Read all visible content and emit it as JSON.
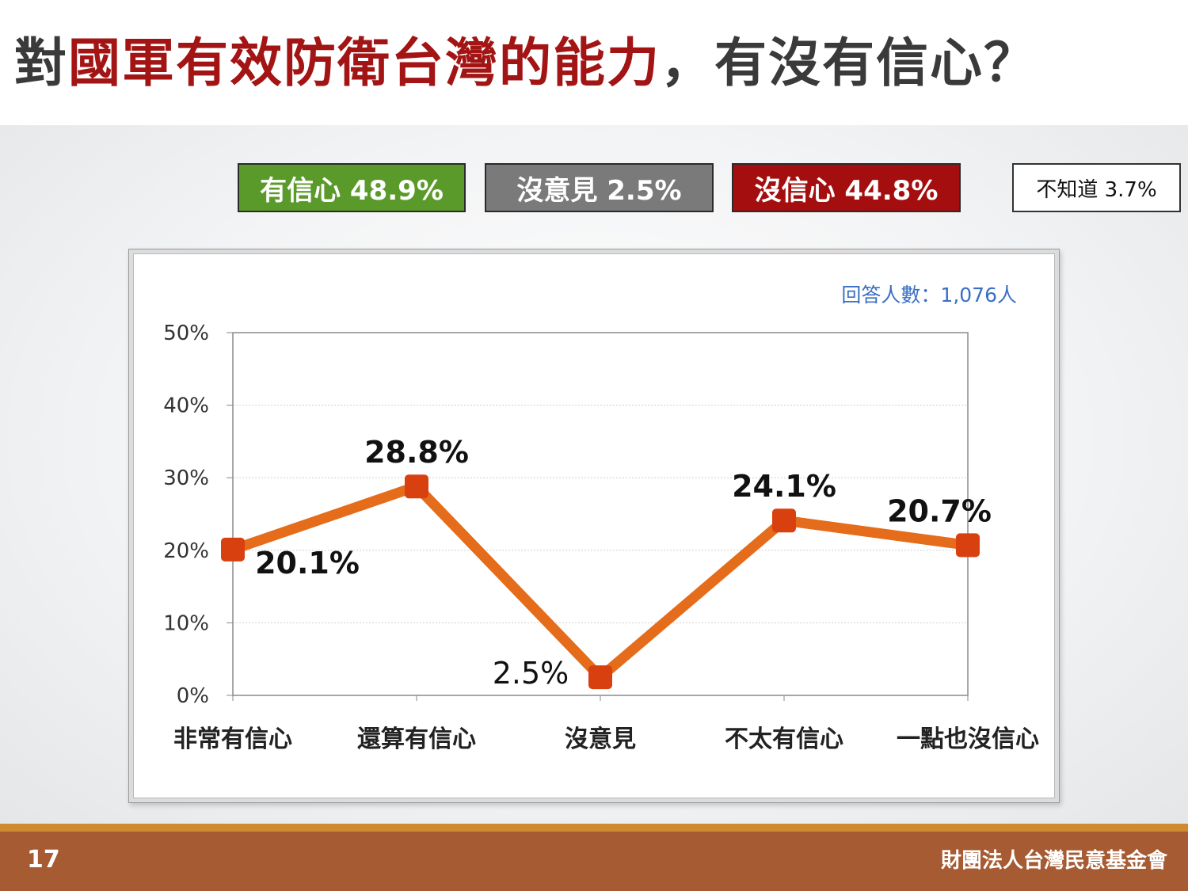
{
  "title": {
    "prefix": "對",
    "highlight": "國軍有效防衛台灣的能力",
    "suffix": "，有沒有信心？"
  },
  "summary_boxes": [
    {
      "label": "有信心 48.9%",
      "color": "#5a9a2a"
    },
    {
      "label": "沒意見 2.5%",
      "color": "#7a7a7a"
    },
    {
      "label": "沒信心 44.8%",
      "color": "#a50e0e"
    },
    {
      "label": "不知道 3.7%",
      "color": "#ffffff"
    }
  ],
  "chart_data": {
    "type": "line",
    "title": "",
    "xlabel": "",
    "ylabel": "",
    "note": "回答人數：1,076人",
    "categories": [
      "非常有信心",
      "還算有信心",
      "沒意見",
      "不太有信心",
      "一點也沒信心"
    ],
    "series": [
      {
        "values": [
          20.1,
          28.8,
          2.5,
          24.1,
          20.7
        ],
        "color": "#e46c1b",
        "marker_color": "#d9400f"
      }
    ],
    "data_labels": [
      "20.1%",
      "28.8%",
      "2.5%",
      "24.1%",
      "20.7%"
    ],
    "yticks": [
      "0%",
      "10%",
      "20%",
      "30%",
      "40%",
      "50%"
    ],
    "ylim": [
      0,
      50
    ],
    "grid": true,
    "legend": "none"
  },
  "footer": {
    "page_number": "17",
    "organization": "財團法人台灣民意基金會"
  }
}
